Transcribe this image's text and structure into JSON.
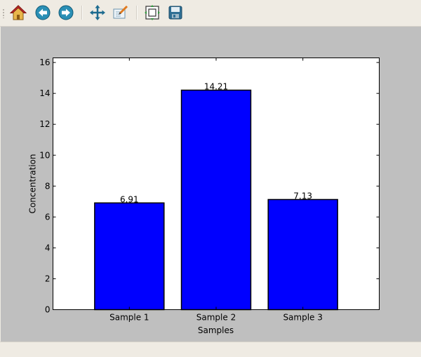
{
  "toolbar": {
    "buttons": [
      {
        "name": "home-icon",
        "label": "Home"
      },
      {
        "name": "back-icon",
        "label": "Back"
      },
      {
        "name": "forward-icon",
        "label": "Forward"
      },
      {
        "name": "pan-icon",
        "label": "Pan"
      },
      {
        "name": "zoom-icon",
        "label": "Zoom"
      },
      {
        "name": "subplots-icon",
        "label": "Configure subplots"
      },
      {
        "name": "save-icon",
        "label": "Save"
      }
    ]
  },
  "colors": {
    "bar_fill": "#0000ff",
    "bar_edge": "#000000",
    "figure_bg": "#bfbfbf",
    "axes_bg": "#ffffff"
  },
  "chart_data": {
    "type": "bar",
    "categories": [
      "Sample 1",
      "Sample 2",
      "Sample 3"
    ],
    "values": [
      6.91,
      14.21,
      7.13
    ],
    "value_labels": [
      "6.91",
      "14.21",
      "7.13"
    ],
    "xlabel": "Samples",
    "ylabel": "Concentration",
    "ylim": [
      0,
      16.3
    ],
    "yticks": [
      0,
      2,
      4,
      6,
      8,
      10,
      12,
      14,
      16
    ],
    "ytick_labels": [
      "0",
      "2",
      "4",
      "6",
      "8",
      "10",
      "12",
      "14",
      "16"
    ],
    "grid": false
  }
}
